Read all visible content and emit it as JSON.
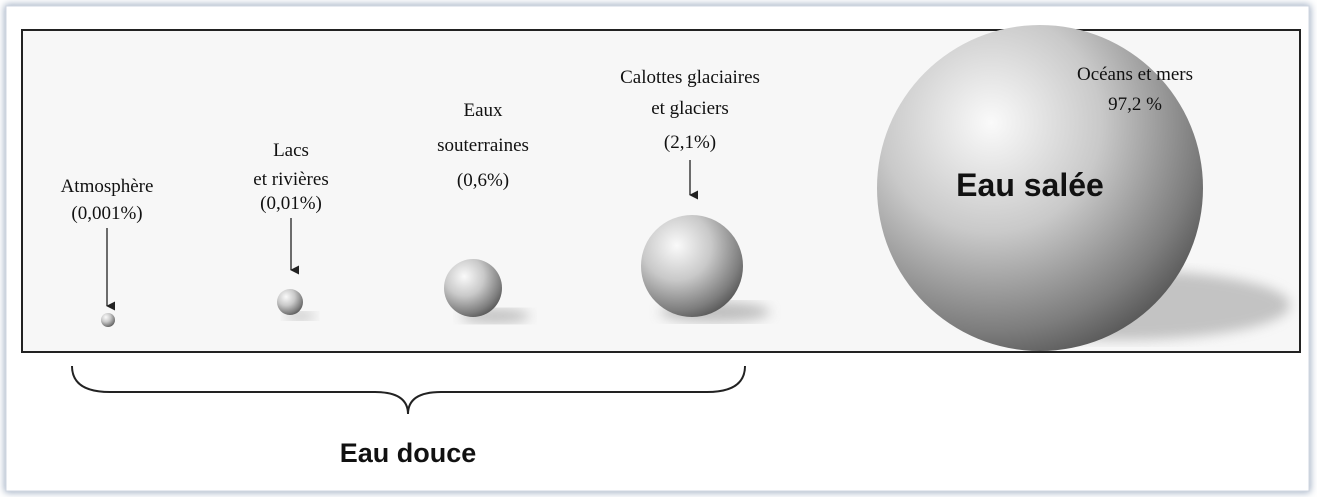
{
  "reservoirs": [
    {
      "label": [
        "Atmosphère"
      ],
      "share": "(0,001%)"
    },
    {
      "label": [
        "Lacs",
        "et rivières"
      ],
      "share": "(0,01%)"
    },
    {
      "label": [
        "Eaux",
        "souterraines"
      ],
      "share": "(0,6%)"
    },
    {
      "label": [
        "Calottes glaciaires",
        "et glaciers"
      ],
      "share": "(2,1%)"
    },
    {
      "label": [
        "Océans et mers"
      ],
      "share": "97,2 %"
    }
  ],
  "salt_label": "Eau salée",
  "fresh_label": "Eau douce"
}
